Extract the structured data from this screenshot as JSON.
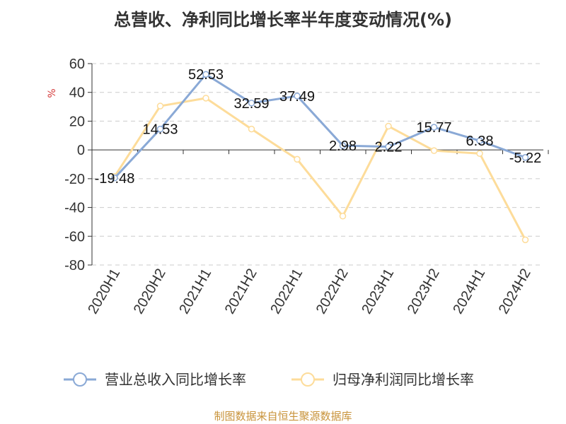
{
  "title": "总营收、净利同比增长率半年度变动情况(%)",
  "source": "制图数据来自恒生聚源数据库",
  "colors": {
    "revenue": "#8aa9d6",
    "profit": "#fddc9a",
    "grid": "#cccccc",
    "axis": "#333333",
    "ylabel": "#d43a3a",
    "source": "#c8933a"
  },
  "chart_data": {
    "type": "line",
    "ylabel": "%",
    "ylim": [
      -80,
      60
    ],
    "yticks": [
      60,
      40,
      20,
      0,
      -20,
      -40,
      -60,
      -80
    ],
    "grid": true,
    "legend_position": "bottom",
    "categories": [
      "2020H1",
      "2020H2",
      "2021H1",
      "2021H2",
      "2022H1",
      "2022H2",
      "2023H1",
      "2023H2",
      "2024H1",
      "2024H2"
    ],
    "series": [
      {
        "name": "营业总收入同比增长率",
        "color": "#8aa9d6",
        "labels": true,
        "values": [
          -19.48,
          14.53,
          52.53,
          32.59,
          37.49,
          2.98,
          2.22,
          15.77,
          6.38,
          -5.22
        ]
      },
      {
        "name": "归母净利润同比增长率",
        "color": "#fddc9a",
        "labels": false,
        "values": [
          -18.5,
          30.5,
          36.0,
          14.5,
          -6.5,
          -46.0,
          16.5,
          -0.5,
          -2.5,
          -62.5
        ]
      }
    ]
  }
}
